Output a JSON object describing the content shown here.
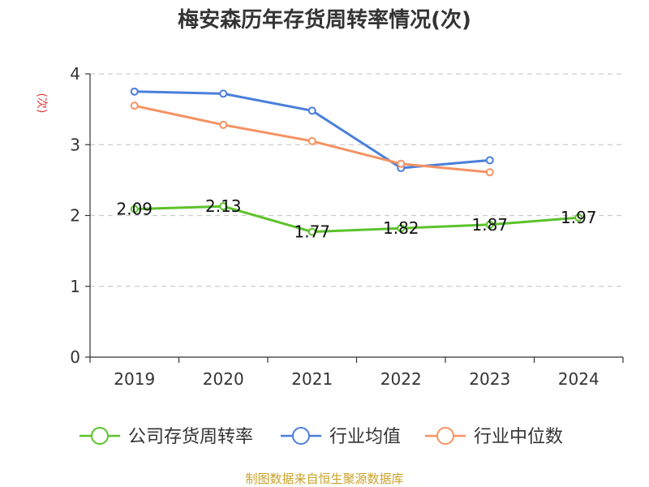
{
  "title": "梅安森历年存货周转率情况(次)",
  "footer": "制图数据来自恒生聚源数据库",
  "colors": {
    "company": "#5cc22b",
    "industry_avg": "#4a7fdb",
    "industry_median": "#f59262",
    "grid": "#cccccc",
    "axis": "#333333",
    "ylabel": "#e23b3b",
    "footer": "#c9a227"
  },
  "chart_data": {
    "type": "line",
    "title": "梅安森历年存货周转率情况(次)",
    "ylabel": "(次)",
    "xlabel": "",
    "categories": [
      "2019",
      "2020",
      "2021",
      "2022",
      "2023",
      "2024"
    ],
    "ylim": [
      0,
      4
    ],
    "yticks": [
      0,
      1,
      2,
      3,
      4
    ],
    "grid": true,
    "legend_position": "bottom",
    "series": [
      {
        "name": "公司存货周转率",
        "color": "#5cc22b",
        "values": [
          2.09,
          2.13,
          1.77,
          1.82,
          1.87,
          1.97
        ],
        "labels": [
          "2.09",
          "2.13",
          "1.77",
          "1.82",
          "1.87",
          "1.97"
        ]
      },
      {
        "name": "行业均值",
        "color": "#4a7fdb",
        "values": [
          3.75,
          3.72,
          3.48,
          2.67,
          2.78,
          null
        ]
      },
      {
        "name": "行业中位数",
        "color": "#f59262",
        "values": [
          3.55,
          3.28,
          3.05,
          2.73,
          2.61,
          null
        ]
      }
    ]
  }
}
